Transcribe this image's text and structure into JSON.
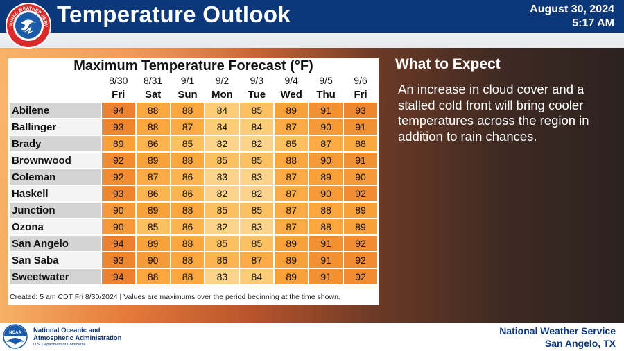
{
  "header": {
    "title": "Temperature Outlook",
    "date": "August 30, 2024",
    "time": "5:17 AM",
    "logo_text": "NATIONAL WEATHER SERVICE"
  },
  "table": {
    "title": "Maximum Temperature Forecast (°F)",
    "dates": [
      "8/30",
      "8/31",
      "9/1",
      "9/2",
      "9/3",
      "9/4",
      "9/5",
      "9/6"
    ],
    "days": [
      "Fri",
      "Sat",
      "Sun",
      "Mon",
      "Tue",
      "Wed",
      "Thu",
      "Fri"
    ],
    "rows": [
      {
        "city": "Abilene",
        "values": [
          94,
          88,
          88,
          84,
          85,
          89,
          91,
          93
        ]
      },
      {
        "city": "Ballinger",
        "values": [
          93,
          88,
          87,
          84,
          84,
          87,
          90,
          91
        ]
      },
      {
        "city": "Brady",
        "values": [
          89,
          86,
          85,
          82,
          82,
          85,
          87,
          88
        ]
      },
      {
        "city": "Brownwood",
        "values": [
          92,
          89,
          88,
          85,
          85,
          88,
          90,
          91
        ]
      },
      {
        "city": "Coleman",
        "values": [
          92,
          87,
          86,
          83,
          83,
          87,
          89,
          90
        ]
      },
      {
        "city": "Haskell",
        "values": [
          93,
          86,
          86,
          82,
          82,
          87,
          90,
          92
        ]
      },
      {
        "city": "Junction",
        "values": [
          90,
          89,
          88,
          85,
          85,
          87,
          88,
          89
        ]
      },
      {
        "city": "Ozona",
        "values": [
          90,
          85,
          86,
          82,
          83,
          87,
          88,
          89
        ]
      },
      {
        "city": "San Angelo",
        "values": [
          94,
          89,
          88,
          85,
          85,
          89,
          91,
          92
        ]
      },
      {
        "city": "San Saba",
        "values": [
          93,
          90,
          88,
          86,
          87,
          89,
          91,
          92
        ]
      },
      {
        "city": "Sweetwater",
        "values": [
          94,
          88,
          88,
          83,
          84,
          89,
          91,
          92
        ]
      }
    ],
    "caption": "Created: 5 am CDT Fri 8/30/2024  |  Values are maximums over the period beginning at the time shown."
  },
  "expect": {
    "title": "What to Expect",
    "text": "An increase in cloud cover and a stalled cold front will bring cooler temperatures across the region in addition to rain chances."
  },
  "footer": {
    "noaa_line1": "National Oceanic and",
    "noaa_line2": "Atmospheric Administration",
    "noaa_sub": "U.S. Department of Commerce",
    "noaa_logo_text": "NOAA",
    "office_line1": "National Weather Service",
    "office_line2": "San Angelo, TX"
  },
  "colors": {
    "header_bg": "#0c3779",
    "scale": {
      "82": "#fbd38a",
      "83": "#fbd38a",
      "84": "#fccd76",
      "85": "#fcc05e",
      "86": "#fbb44f",
      "87": "#fbab45",
      "88": "#fba63f",
      "89": "#f8a13a",
      "90": "#f59a38",
      "91": "#f29134",
      "92": "#f18c32",
      "93": "#ee852f",
      "94": "#ec8130"
    }
  }
}
